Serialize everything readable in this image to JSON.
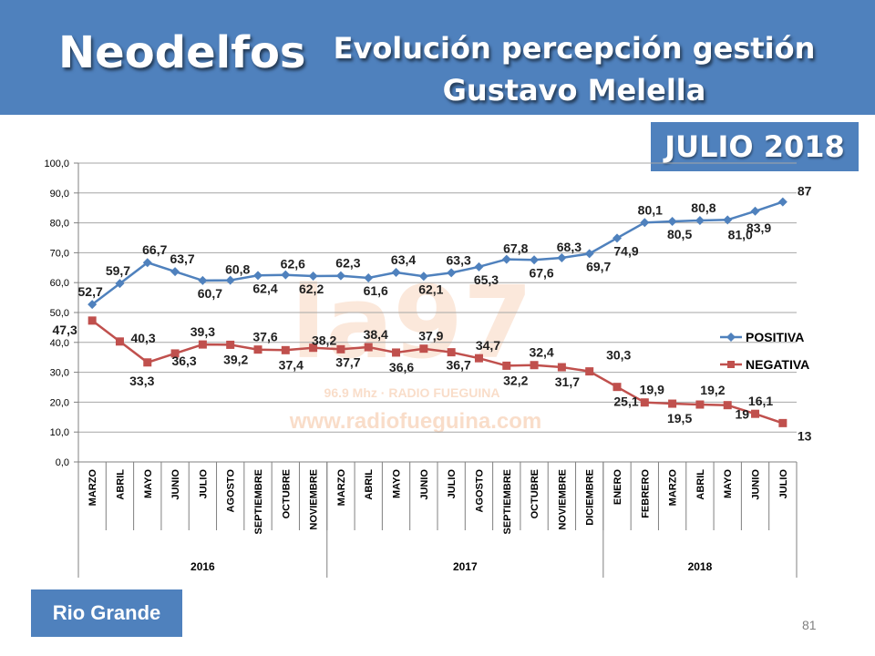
{
  "header": {
    "brand": "Neodelfos",
    "title_line1": "Evolución percepción gestión",
    "title_line2": "Gustavo Melella"
  },
  "badge": "JULIO 2018",
  "footer": {
    "location": "Rio Grande",
    "page_number": "81"
  },
  "watermark": {
    "logo_text": "la97",
    "frequency": "96.9 Mhz · RADIO FUEGUINA",
    "url": "www.radiofueguina.com"
  },
  "colors": {
    "header_bg": "#4f81bd",
    "positiva": "#4f81bd",
    "negativa": "#c0504d"
  },
  "chart_data": {
    "type": "line",
    "ylim": [
      0,
      100
    ],
    "yticks": [
      "0,0",
      "10,0",
      "20,0",
      "30,0",
      "40,0",
      "50,0",
      "60,0",
      "70,0",
      "80,0",
      "90,0",
      "100,0"
    ],
    "grid": true,
    "legend_position": "right",
    "categories": [
      "MARZO",
      "ABRIL",
      "MAYO",
      "JUNIO",
      "JULIO",
      "AGOSTO",
      "SEPTIEMBRE",
      "OCTUBRE",
      "NOVIEMBRE",
      "MARZO",
      "ABRIL",
      "MAYO",
      "JUNIO",
      "JULIO",
      "AGOSTO",
      "SEPTIEMBRE",
      "OCTUBRE",
      "NOVIEMBRE",
      "DICIEMBRE",
      "ENERO",
      "FEBRERO",
      "MARZO",
      "ABRIL",
      "MAYO",
      "JUNIO",
      "JULIO"
    ],
    "groups": [
      {
        "label": "2016",
        "count": 9
      },
      {
        "label": "2017",
        "count": 10
      },
      {
        "label": "2018",
        "count": 7
      }
    ],
    "series": [
      {
        "name": "POSITIVA",
        "values": [
          52.7,
          59.7,
          66.7,
          63.7,
          60.7,
          60.8,
          62.4,
          62.6,
          62.2,
          62.3,
          61.6,
          63.4,
          62.1,
          63.3,
          65.3,
          67.8,
          67.6,
          68.3,
          69.7,
          74.9,
          80.1,
          80.5,
          80.8,
          81.0,
          83.9,
          87
        ],
        "labels": [
          "52,7",
          "59,7",
          "66,7",
          "63,7",
          "60,7",
          "60,8",
          "62,4",
          "62,6",
          "62,2",
          "62,3",
          "61,6",
          "63,4",
          "62,1",
          "63,3",
          "65,3",
          "67,8",
          "67,6",
          "68,3",
          "69,7",
          "74,9",
          "80,1",
          "80,5",
          "80,8",
          "81,0",
          "83,9",
          "87"
        ]
      },
      {
        "name": "NEGATIVA",
        "values": [
          47.3,
          40.3,
          33.3,
          36.3,
          39.3,
          39.2,
          37.6,
          37.4,
          38.2,
          37.7,
          38.4,
          36.6,
          37.9,
          36.7,
          34.7,
          32.2,
          32.4,
          31.7,
          30.3,
          25.1,
          19.9,
          19.5,
          19.2,
          19,
          16.1,
          13
        ],
        "labels": [
          "47,3",
          "40,3",
          "33,3",
          "36,3",
          "39,3",
          "39,2",
          "37,6",
          "37,4",
          "38,2",
          "37,7",
          "38,4",
          "36,6",
          "37,9",
          "36,7",
          "34,7",
          "32,2",
          "32,4",
          "31,7",
          "30,3",
          "25,1",
          "19,9",
          "19,5",
          "19,2",
          "19",
          "16,1",
          "13"
        ]
      }
    ]
  }
}
